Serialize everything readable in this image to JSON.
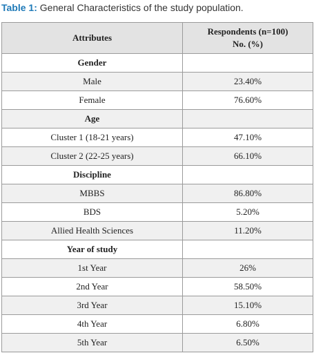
{
  "caption": {
    "lead": "Table 1:",
    "text": " General Characteristics of the study population."
  },
  "header": {
    "attributes": "Attributes",
    "respondents_line1": "Respondents (n=100)",
    "respondents_line2": "No. (%)"
  },
  "rows": [
    {
      "type": "section",
      "label": "Gender",
      "value": ""
    },
    {
      "type": "row",
      "label": "Male",
      "value": "23.40%"
    },
    {
      "type": "row",
      "label": "Female",
      "value": "76.60%"
    },
    {
      "type": "section",
      "label": "Age",
      "value": ""
    },
    {
      "type": "row",
      "label": "Cluster 1 (18-21 years)",
      "value": "47.10%"
    },
    {
      "type": "row",
      "label": "Cluster 2 (22-25 years)",
      "value": "66.10%"
    },
    {
      "type": "section",
      "label": "Discipline",
      "value": ""
    },
    {
      "type": "row",
      "label": "MBBS",
      "value": "86.80%"
    },
    {
      "type": "row",
      "label": "BDS",
      "value": "5.20%"
    },
    {
      "type": "row",
      "label": "Allied Health Sciences",
      "value": "11.20%"
    },
    {
      "type": "section",
      "label": "Year of study",
      "value": ""
    },
    {
      "type": "row",
      "label": "1st Year",
      "value": "26%"
    },
    {
      "type": "row",
      "label": "2nd Year",
      "value": "58.50%"
    },
    {
      "type": "row",
      "label": "3rd Year",
      "value": "15.10%"
    },
    {
      "type": "row",
      "label": "4th Year",
      "value": "6.80%"
    },
    {
      "type": "row",
      "label": "5th Year",
      "value": "6.50%"
    }
  ]
}
